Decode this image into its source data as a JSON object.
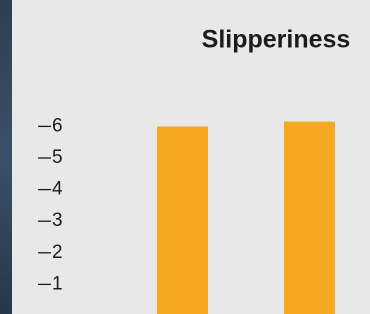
{
  "chart_data": {
    "type": "bar",
    "title": "Slipperiness",
    "categories": [
      null,
      null
    ],
    "values": [
      6.0,
      6.15
    ],
    "color": "#f7a822",
    "ylim": [
      0,
      10
    ],
    "yticks": [
      1,
      2,
      3,
      4,
      5,
      6
    ],
    "grid": false
  }
}
